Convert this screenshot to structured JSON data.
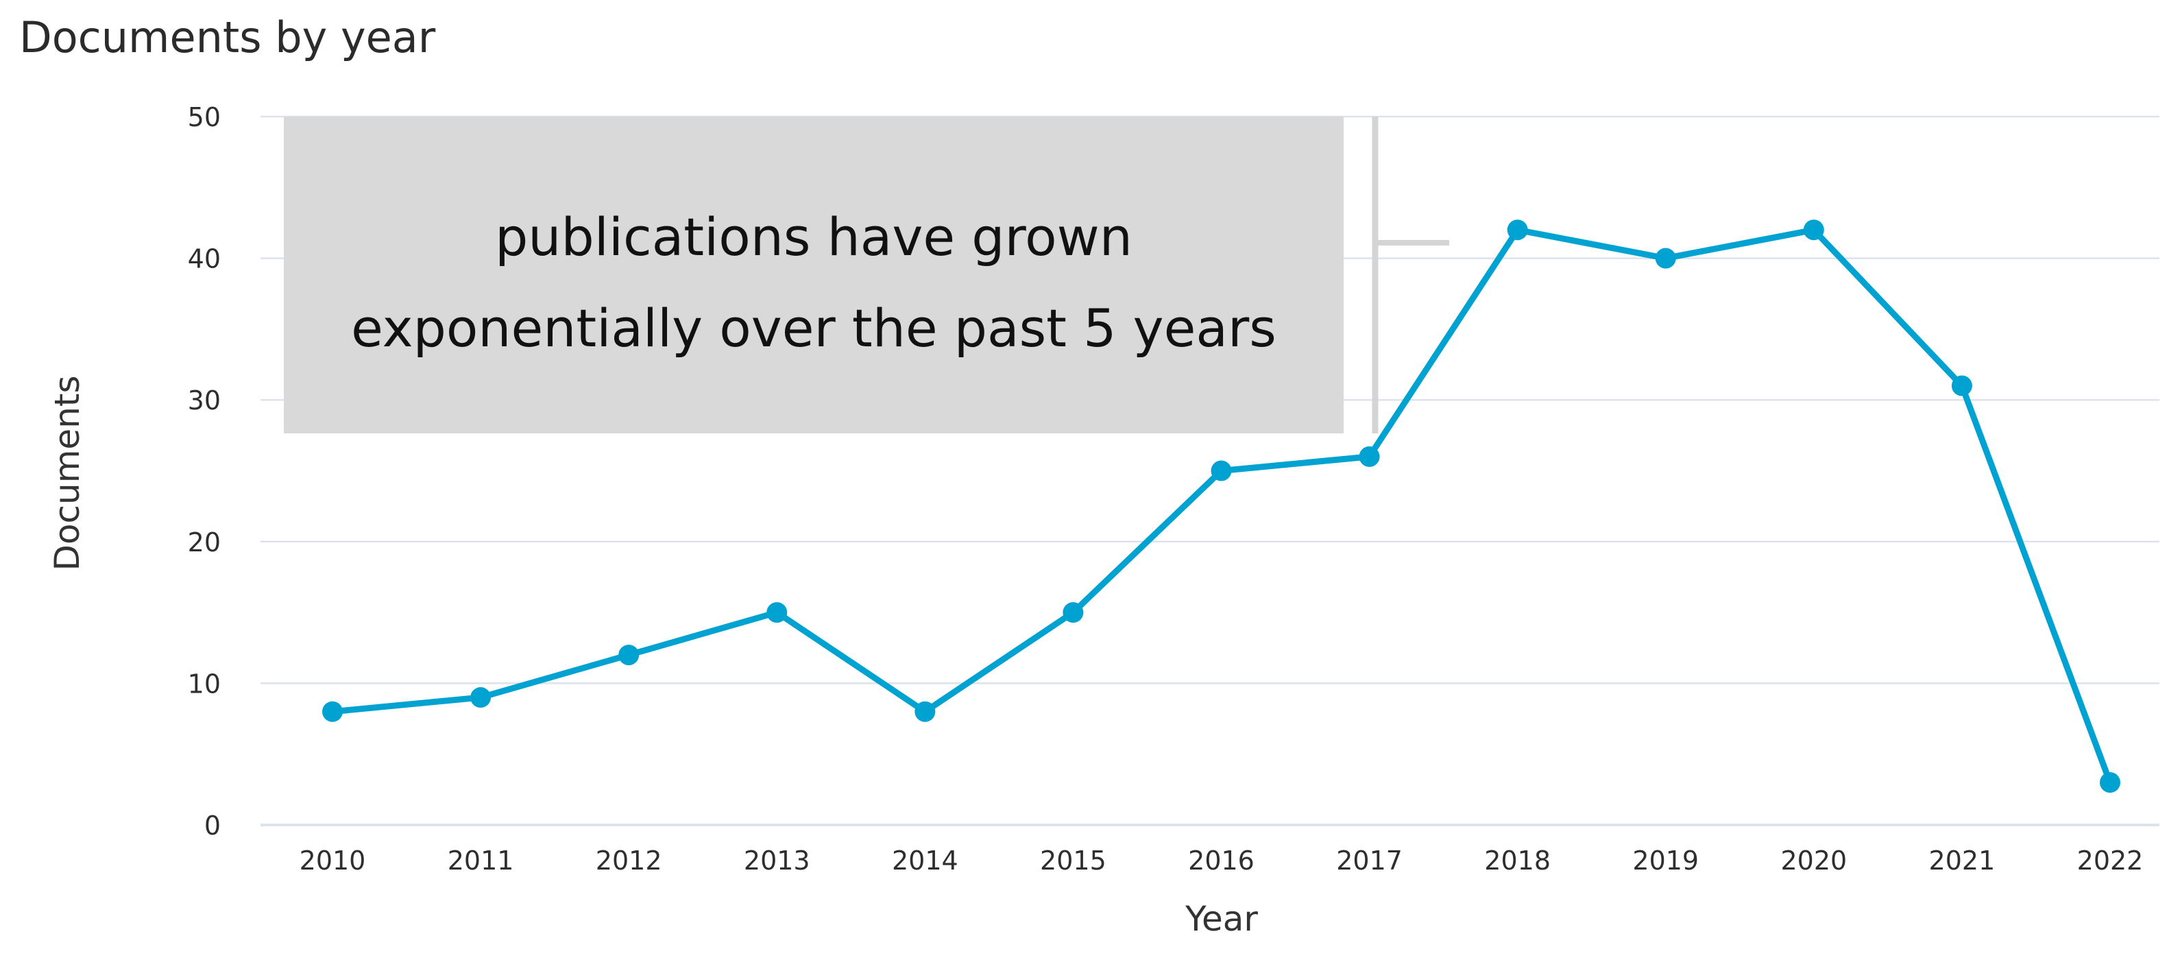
{
  "chart_data": {
    "type": "line",
    "title": "Documents by year",
    "xlabel": "Year",
    "ylabel": "Documents",
    "categories": [
      "2010",
      "2011",
      "2012",
      "2013",
      "2014",
      "2015",
      "2016",
      "2017",
      "2018",
      "2019",
      "2020",
      "2021",
      "2022"
    ],
    "series": [
      {
        "values": [
          8,
          9,
          12,
          15,
          8,
          15,
          25,
          26,
          42,
          40,
          42,
          31,
          3
        ]
      }
    ],
    "ylim": [
      0,
      50
    ],
    "yticks": [
      "0",
      "10",
      "20",
      "30",
      "40",
      "50"
    ],
    "grid": true,
    "annotation": {
      "lines": [
        "publications have grown",
        "exponentially over the past 5 years"
      ]
    },
    "colors": {
      "line": "#00a2d1",
      "grid": "#dce3ec",
      "annotation_box": "#d9d9d9"
    }
  }
}
